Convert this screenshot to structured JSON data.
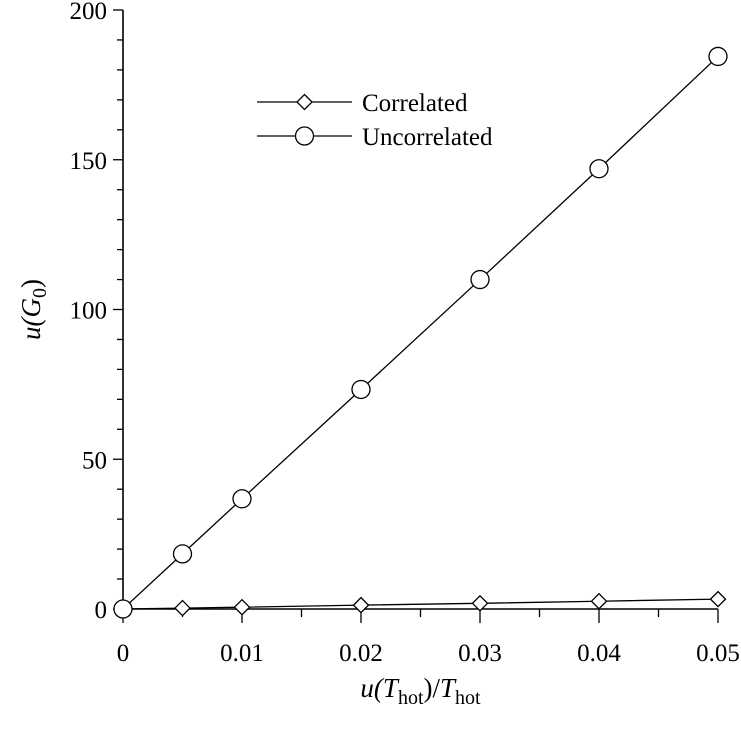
{
  "chart_data": {
    "type": "line",
    "xlabel": {
      "prefix": "u(",
      "var": "T",
      "sub": "hot",
      "mid": ")/",
      "var2": "T",
      "sub2": "hot"
    },
    "ylabel": {
      "prefix": "u(",
      "var": "G",
      "sub": "0",
      "suffix": ")"
    },
    "xlim": [
      0,
      0.05
    ],
    "ylim": [
      0,
      200
    ],
    "x_ticks": [
      0,
      0.01,
      0.02,
      0.03,
      0.04,
      0.05
    ],
    "x_tick_labels": [
      "0",
      "0.01",
      "0.02",
      "0.03",
      "0.04",
      "0.05"
    ],
    "y_ticks": [
      0,
      50,
      100,
      150,
      200
    ],
    "y_tick_labels": [
      "0",
      "50",
      "100",
      "150",
      "200"
    ],
    "grid": false,
    "legend_position": "upper-left",
    "x": [
      0,
      0.005,
      0.01,
      0.02,
      0.03,
      0.04,
      0.05
    ],
    "series": [
      {
        "name": "Correlated",
        "marker": "diamond",
        "values": [
          0,
          0.3,
          0.6,
          1.3,
          1.9,
          2.6,
          3.3
        ]
      },
      {
        "name": "Uncorrelated",
        "marker": "circle",
        "values": [
          0,
          18.4,
          36.8,
          73.3,
          110,
          147,
          184.5
        ]
      }
    ]
  }
}
